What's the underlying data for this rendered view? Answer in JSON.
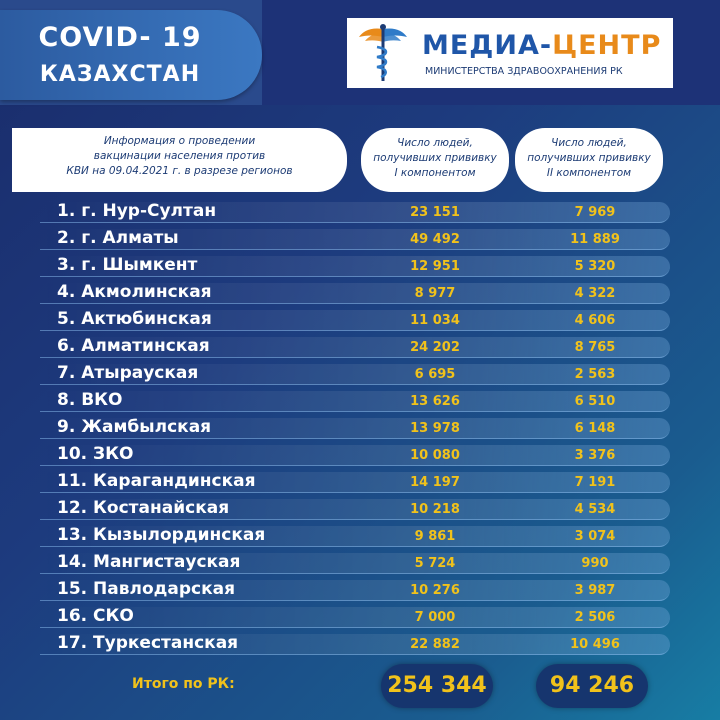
{
  "title": {
    "line1": "COVID- 19",
    "line2": "КАЗАХСТАН"
  },
  "logo": {
    "main_part1": "МЕДИА-",
    "main_part2": "ЦЕНТР",
    "sub": "МИНИСТЕРСТВА ЗДРАВООХРАНЕНИЯ РК",
    "brand_color": "#1f56a8",
    "accent_color": "#e88a1a"
  },
  "header": {
    "info_lines": [
      "Информация о проведении",
      "вакцинации населения против",
      "КВИ на 09.04.2021 г. в разрезе регионов"
    ],
    "col1_lines": [
      "Число людей,",
      "получивших прививку",
      "I компонентом"
    ],
    "col2_lines": [
      "Число людей,",
      "получивших прививку",
      "II компонентом"
    ]
  },
  "rows": [
    {
      "name": "1. г. Нур-Султан",
      "v1": "23 151",
      "v2": "7 969"
    },
    {
      "name": "2. г. Алматы",
      "v1": "49 492",
      "v2": "11 889"
    },
    {
      "name": "3. г. Шымкент",
      "v1": "12 951",
      "v2": "5 320"
    },
    {
      "name": "4. Акмолинская",
      "v1": "8 977",
      "v2": "4 322"
    },
    {
      "name": "5. Актюбинская",
      "v1": "11 034",
      "v2": "4 606"
    },
    {
      "name": "6. Алматинская",
      "v1": "24 202",
      "v2": "8 765"
    },
    {
      "name": "7. Атырауская",
      "v1": "6 695",
      "v2": "2 563"
    },
    {
      "name": "8. ВКО",
      "v1": "13 626",
      "v2": "6 510"
    },
    {
      "name": "9. Жамбылская",
      "v1": "13 978",
      "v2": "6 148"
    },
    {
      "name": "10. ЗКО",
      "v1": "10 080",
      "v2": "3 376"
    },
    {
      "name": "11. Карагандинская",
      "v1": "14 197",
      "v2": "7 191"
    },
    {
      "name": "12. Костанайская",
      "v1": "10 218",
      "v2": "4 534"
    },
    {
      "name": "13. Кызылординская",
      "v1": "9 861",
      "v2": "3 074"
    },
    {
      "name": "14. Мангистауская",
      "v1": "5 724",
      "v2": "990"
    },
    {
      "name": "15. Павлодарская",
      "v1": "10 276",
      "v2": "3 987"
    },
    {
      "name": "16. СКО",
      "v1": "7 000",
      "v2": "2 506"
    },
    {
      "name": "17. Туркестанская",
      "v1": "22 882",
      "v2": "10 496"
    }
  ],
  "total": {
    "label": "Итого по РК:",
    "v1": "254 344",
    "v2": "94 246"
  },
  "colors": {
    "value": "#f1c21b",
    "background": "#1d3b7e"
  }
}
